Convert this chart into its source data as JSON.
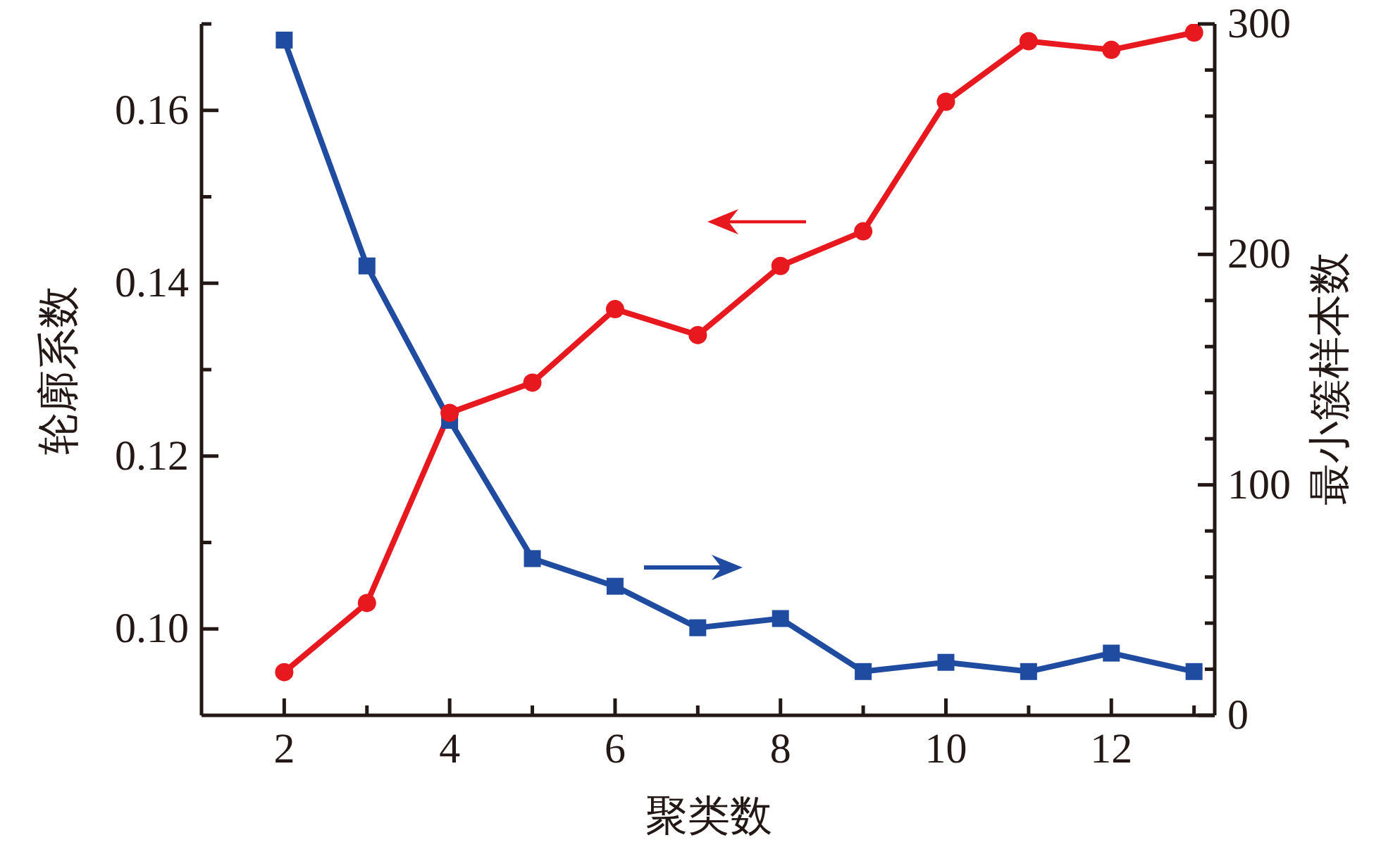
{
  "chart_data": {
    "type": "line",
    "xlabel": "聚类数",
    "ylabel": "轮廓系数",
    "y2label": "最小簇样本数",
    "x": [
      2,
      3,
      4,
      5,
      6,
      7,
      8,
      9,
      10,
      11,
      12,
      13
    ],
    "xlim": [
      1,
      13.25
    ],
    "xticks": [
      2,
      {
        "value": 3,
        "label": null
      },
      4,
      {
        "value": 5,
        "label": null
      },
      6,
      {
        "value": 7,
        "label": null
      },
      8,
      {
        "value": 9,
        "label": null
      },
      10,
      {
        "value": 11,
        "label": null
      },
      12,
      {
        "value": 13,
        "label": null
      }
    ],
    "ylim": [
      0.09,
      0.17
    ],
    "yticks": [
      {
        "value": 0.1,
        "label": "0.10"
      },
      {
        "value": 0.11,
        "label": null
      },
      0.12,
      {
        "value": 0.13,
        "label": null
      },
      0.14,
      {
        "value": 0.15,
        "label": null
      },
      0.16,
      {
        "value": 0.17,
        "label": null
      }
    ],
    "y2lim": [
      0,
      300
    ],
    "y2ticks": [
      0,
      {
        "value": 20,
        "label": null
      },
      {
        "value": 40,
        "label": null
      },
      {
        "value": 60,
        "label": null
      },
      {
        "value": 80,
        "label": null
      },
      100,
      {
        "value": 120,
        "label": null
      },
      {
        "value": 140,
        "label": null
      },
      {
        "value": 160,
        "label": null
      },
      {
        "value": 180,
        "label": null
      },
      200,
      {
        "value": 220,
        "label": null
      },
      {
        "value": 240,
        "label": null
      },
      {
        "value": 260,
        "label": null
      },
      {
        "value": 280,
        "label": null
      },
      300
    ],
    "series": [
      {
        "color": "#1f4ba0",
        "marker": "square",
        "axis": "y2",
        "values": [
          293,
          195,
          128,
          68,
          56,
          38,
          42,
          19,
          23,
          19,
          27,
          19
        ]
      },
      {
        "color": "#e8191e",
        "marker": "circle",
        "values": [
          0.095,
          0.103,
          0.125,
          0.1285,
          0.137,
          0.134,
          0.142,
          0.146,
          0.161,
          0.168,
          0.167,
          0.169
        ]
      }
    ]
  }
}
